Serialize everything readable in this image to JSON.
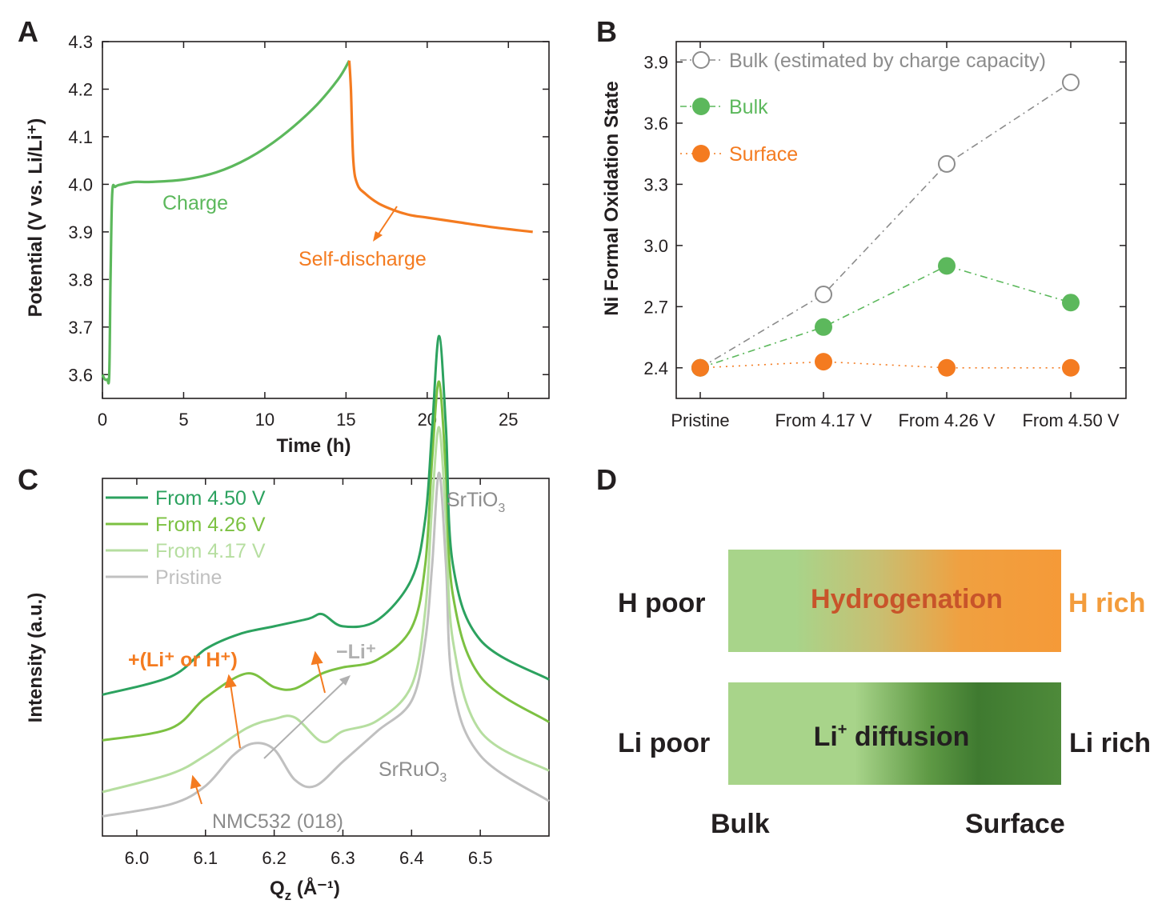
{
  "figure": {
    "panels": [
      "A",
      "B",
      "C",
      "D"
    ]
  },
  "colors": {
    "charge": "#5cb85c",
    "orange": "#f47b20",
    "gray": "#8c8c8c",
    "green_dark": "#2ca25f",
    "green_mid": "#7cc142",
    "green_light": "#b6dea0",
    "gray_light": "#c0c0c0",
    "axis": "#231f20"
  },
  "chart_data": [
    {
      "panel": "A",
      "type": "line",
      "xlabel": "Time (h)",
      "ylabel": "Potential (V vs. Li/Li⁺)",
      "xlim": [
        0,
        27.5
      ],
      "ylim": [
        3.55,
        4.3
      ],
      "xticks": [
        0,
        5,
        10,
        15,
        20,
        25
      ],
      "yticks": [
        3.6,
        3.7,
        3.8,
        3.9,
        4.0,
        4.1,
        4.2,
        4.3
      ],
      "xtick_labels": [
        "0",
        "5",
        "10",
        "15",
        "20",
        "25"
      ],
      "ytick_labels": [
        "3.6",
        "3.7",
        "3.8",
        "3.9",
        "4.0",
        "4.1",
        "4.2",
        "4.3"
      ],
      "annotations": [
        "Charge",
        "Self-discharge"
      ],
      "series": [
        {
          "name": "Charge",
          "color": "#5cb85c",
          "x": [
            0,
            0.15,
            0.3,
            0.42,
            0.5,
            0.6,
            0.8,
            1.2,
            2,
            3,
            5,
            7,
            9,
            11,
            13,
            14.5,
            15.2
          ],
          "y": [
            3.6,
            3.59,
            3.59,
            3.6,
            3.8,
            3.98,
            3.995,
            4.0,
            4.005,
            4.005,
            4.01,
            4.025,
            4.055,
            4.1,
            4.16,
            4.22,
            4.26
          ]
        },
        {
          "name": "Self-discharge",
          "color": "#f47b20",
          "x": [
            15.2,
            15.3,
            15.45,
            15.7,
            16.2,
            17,
            18,
            19,
            20,
            22,
            24,
            26.5
          ],
          "y": [
            4.26,
            4.2,
            4.05,
            4.0,
            3.98,
            3.96,
            3.945,
            3.935,
            3.93,
            3.92,
            3.91,
            3.9
          ]
        }
      ]
    },
    {
      "panel": "B",
      "type": "line",
      "ylabel": "Ni Formal Oxidation State",
      "categories": [
        "Pristine",
        "From 4.17 V",
        "From 4.26 V",
        "From 4.50 V"
      ],
      "ylim": [
        2.25,
        4.0
      ],
      "yticks": [
        2.4,
        2.7,
        3.0,
        3.3,
        3.6,
        3.9
      ],
      "ytick_labels": [
        "2.4",
        "2.7",
        "3.0",
        "3.3",
        "3.6",
        "3.9"
      ],
      "series": [
        {
          "name": "Bulk (estimated by charge capacity)",
          "color": "#8c8c8c",
          "marker": "open-circle",
          "line": "dashdot",
          "values": [
            2.4,
            2.76,
            3.4,
            3.8
          ]
        },
        {
          "name": "Bulk",
          "color": "#5cb85c",
          "marker": "filled-circle",
          "line": "dashdot",
          "values": [
            2.4,
            2.6,
            2.9,
            2.72
          ]
        },
        {
          "name": "Surface",
          "color": "#f47b20",
          "marker": "filled-circle",
          "line": "dotted",
          "values": [
            2.4,
            2.43,
            2.4,
            2.4
          ]
        }
      ]
    },
    {
      "panel": "C",
      "type": "line",
      "xlabel_main": "Q",
      "xlabel_sub": "z",
      "xlabel_rest": " (Å⁻¹)",
      "ylabel": "Intensity (a.u.)",
      "xlim": [
        5.95,
        6.6
      ],
      "xticks": [
        6.0,
        6.1,
        6.2,
        6.3,
        6.4,
        6.5
      ],
      "xtick_labels": [
        "6.0",
        "6.1",
        "6.2",
        "6.3",
        "6.4",
        "6.5"
      ],
      "annotations": {
        "srtio3": "SrTiO",
        "srtio3_sub": "3",
        "srruo3": "SrRuO",
        "srruo3_sub": "3",
        "nmc": "NMC532 (018)",
        "li_or_h": "+(Li⁺ or H⁺)",
        "minus_li": "−Li⁺"
      },
      "series": [
        {
          "name": "From 4.50 V",
          "color": "#2ca25f",
          "x": [
            5.95,
            6.05,
            6.1,
            6.15,
            6.2,
            6.25,
            6.27,
            6.3,
            6.35,
            6.4,
            6.42,
            6.43,
            6.44,
            6.45,
            6.46,
            6.5,
            6.6
          ],
          "y": [
            0.42,
            0.48,
            0.57,
            0.62,
            0.645,
            0.67,
            0.685,
            0.645,
            0.665,
            0.8,
            1.0,
            1.3,
            1.6,
            1.3,
            0.85,
            0.6,
            0.47
          ]
        },
        {
          "name": "From 4.26 V",
          "color": "#7cc142",
          "x": [
            5.95,
            6.05,
            6.1,
            6.16,
            6.2,
            6.23,
            6.27,
            6.3,
            6.35,
            6.4,
            6.42,
            6.43,
            6.44,
            6.45,
            6.46,
            6.5,
            6.6
          ],
          "y": [
            0.27,
            0.31,
            0.41,
            0.49,
            0.445,
            0.44,
            0.49,
            0.51,
            0.535,
            0.64,
            0.85,
            1.2,
            1.45,
            1.15,
            0.75,
            0.48,
            0.33
          ]
        },
        {
          "name": "From 4.17 V",
          "color": "#b6dea0",
          "x": [
            5.95,
            6.05,
            6.1,
            6.16,
            6.2,
            6.23,
            6.27,
            6.3,
            6.35,
            6.4,
            6.42,
            6.43,
            6.44,
            6.45,
            6.46,
            6.5,
            6.6
          ],
          "y": [
            0.1,
            0.16,
            0.22,
            0.31,
            0.34,
            0.345,
            0.265,
            0.3,
            0.335,
            0.45,
            0.7,
            1.05,
            1.3,
            1.0,
            0.6,
            0.3,
            0.17
          ]
        },
        {
          "name": "Pristine",
          "color": "#c0c0c0",
          "x": [
            5.95,
            6.05,
            6.1,
            6.14,
            6.17,
            6.2,
            6.23,
            6.26,
            6.3,
            6.35,
            6.4,
            6.42,
            6.43,
            6.44,
            6.45,
            6.46,
            6.5,
            6.6
          ],
          "y": [
            0.02,
            0.06,
            0.12,
            0.22,
            0.26,
            0.24,
            0.14,
            0.12,
            0.2,
            0.3,
            0.4,
            0.6,
            0.85,
            1.15,
            0.85,
            0.45,
            0.22,
            0.07
          ]
        }
      ]
    }
  ],
  "panel_d": {
    "top_left": "H poor",
    "top_center": "Hydrogenation",
    "top_right": "H rich",
    "bottom_left": "Li poor",
    "bottom_center_main": "Li",
    "bottom_center_sup": "+",
    "bottom_center_rest": " diffusion",
    "bottom_right": "Li rich",
    "axis_left": "Bulk",
    "axis_right": "Surface",
    "colors": {
      "h_text": "#c8542a",
      "h_rich": "#f39c3c",
      "text": "#231f20"
    }
  }
}
